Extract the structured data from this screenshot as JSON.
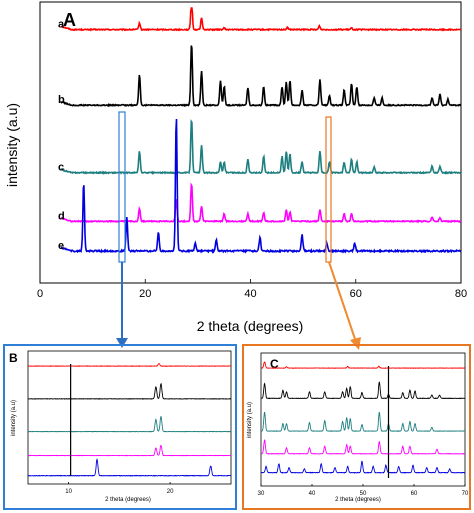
{
  "chart_data": [
    {
      "panel": "A",
      "type": "line",
      "xlabel": "2 theta (degrees)",
      "ylabel": "intensity (a.u)",
      "xlim": [
        0,
        80
      ],
      "xticks": [
        "0",
        "20",
        "40",
        "60",
        "80"
      ],
      "series": [
        {
          "name": "a",
          "color": "#ff0000",
          "baseline": 0.92,
          "scale": 0.11,
          "noise": 0.004,
          "peaks": [
            [
              18.9,
              0.22
            ],
            [
              28.8,
              1.0
            ],
            [
              30.7,
              0.38
            ],
            [
              35.0,
              0.05
            ],
            [
              47.0,
              0.07
            ],
            [
              53.1,
              0.12
            ],
            [
              59.2,
              0.05
            ]
          ],
          "x_start": 4,
          "x_end": 80
        },
        {
          "name": "b",
          "color": "#000000",
          "baseline": 0.64,
          "scale": 0.23,
          "noise": 0.004,
          "peaks": [
            [
              18.9,
              0.5
            ],
            [
              28.8,
              1.0
            ],
            [
              30.7,
              0.55
            ],
            [
              34.3,
              0.4
            ],
            [
              35.0,
              0.3
            ],
            [
              39.5,
              0.28
            ],
            [
              42.5,
              0.3
            ],
            [
              46.0,
              0.3
            ],
            [
              46.8,
              0.38
            ],
            [
              47.5,
              0.4
            ],
            [
              49.8,
              0.24
            ],
            [
              53.2,
              0.42
            ],
            [
              55.0,
              0.15
            ],
            [
              57.8,
              0.25
            ],
            [
              59.2,
              0.35
            ],
            [
              60.2,
              0.3
            ],
            [
              63.5,
              0.12
            ],
            [
              65.0,
              0.12
            ],
            [
              74.5,
              0.12
            ],
            [
              76.0,
              0.18
            ],
            [
              77.5,
              0.1
            ]
          ],
          "x_start": 4,
          "x_end": 80
        },
        {
          "name": "c",
          "color": "#1e7f80",
          "baseline": 0.39,
          "scale": 0.2,
          "noise": 0.004,
          "peaks": [
            [
              18.9,
              0.4
            ],
            [
              28.8,
              1.0
            ],
            [
              30.7,
              0.5
            ],
            [
              34.3,
              0.2
            ],
            [
              35.0,
              0.2
            ],
            [
              39.5,
              0.25
            ],
            [
              42.5,
              0.3
            ],
            [
              46.0,
              0.3
            ],
            [
              46.8,
              0.4
            ],
            [
              47.5,
              0.35
            ],
            [
              49.8,
              0.2
            ],
            [
              53.2,
              0.4
            ],
            [
              55.0,
              0.2
            ],
            [
              57.8,
              0.2
            ],
            [
              59.2,
              0.25
            ],
            [
              60.2,
              0.2
            ],
            [
              63.5,
              0.1
            ],
            [
              74.5,
              0.12
            ],
            [
              76.0,
              0.12
            ]
          ],
          "x_start": 4,
          "x_end": 80
        },
        {
          "name": "d",
          "color": "#ff00ff",
          "baseline": 0.21,
          "scale": 0.14,
          "noise": 0.004,
          "peaks": [
            [
              18.9,
              0.35
            ],
            [
              25.9,
              0.6
            ],
            [
              28.8,
              1.0
            ],
            [
              30.7,
              0.4
            ],
            [
              35.0,
              0.2
            ],
            [
              39.5,
              0.2
            ],
            [
              42.5,
              0.22
            ],
            [
              46.8,
              0.3
            ],
            [
              47.5,
              0.25
            ],
            [
              53.2,
              0.3
            ],
            [
              57.8,
              0.2
            ],
            [
              59.2,
              0.2
            ],
            [
              74.5,
              0.1
            ],
            [
              76.0,
              0.1
            ]
          ],
          "x_start": 4,
          "x_end": 80
        },
        {
          "name": "e",
          "color": "#0000e0",
          "baseline": 0.1,
          "scale": 0.5,
          "noise": 0.006,
          "peaks": [
            [
              8.3,
              0.5
            ],
            [
              16.5,
              0.25
            ],
            [
              22.5,
              0.14
            ],
            [
              25.9,
              1.0
            ],
            [
              29.5,
              0.06
            ],
            [
              33.5,
              0.08
            ],
            [
              41.8,
              0.1
            ],
            [
              49.8,
              0.12
            ],
            [
              54.5,
              0.06
            ],
            [
              59.8,
              0.06
            ]
          ],
          "x_start": 4,
          "x_end": 80
        }
      ]
    },
    {
      "panel": "B",
      "type": "line",
      "xlabel": "2 theta (degrees)",
      "ylabel": "intensity (a.u)",
      "xlim": [
        6,
        26
      ],
      "xticks": [
        "10",
        "20"
      ],
      "marker_x": 10.2,
      "series": [
        {
          "name": "a",
          "color": "#ff0000",
          "baseline": 0.92,
          "scale": 0.05,
          "noise": 0.003,
          "peaks": [
            [
              18.9,
              0.4
            ]
          ]
        },
        {
          "name": "b",
          "color": "#000000",
          "baseline": 0.66,
          "scale": 0.12,
          "noise": 0.003,
          "peaks": [
            [
              18.6,
              0.8
            ],
            [
              19.1,
              1.0
            ]
          ]
        },
        {
          "name": "c",
          "color": "#1e7f80",
          "baseline": 0.4,
          "scale": 0.12,
          "noise": 0.003,
          "peaks": [
            [
              18.6,
              0.8
            ],
            [
              19.1,
              1.0
            ]
          ]
        },
        {
          "name": "d",
          "color": "#ff00ff",
          "baseline": 0.21,
          "scale": 0.1,
          "noise": 0.003,
          "peaks": [
            [
              18.6,
              0.6
            ],
            [
              19.1,
              0.8
            ]
          ]
        },
        {
          "name": "e",
          "color": "#0000e0",
          "baseline": 0.05,
          "scale": 0.13,
          "noise": 0.004,
          "peaks": [
            [
              12.8,
              1.0
            ],
            [
              24.0,
              0.6
            ]
          ]
        }
      ]
    },
    {
      "panel": "C",
      "type": "line",
      "xlabel": "2 theta (degrees)",
      "ylabel": "intensity (a.u)",
      "xlim": [
        30,
        70
      ],
      "xticks": [
        "30",
        "40",
        "50",
        "60",
        "70"
      ],
      "marker_x": 55.0,
      "series": [
        {
          "name": "a",
          "color": "#ff0000",
          "baseline": 0.92,
          "scale": 0.05,
          "noise": 0.003,
          "peaks": [
            [
              30.7,
              1.0
            ],
            [
              35.0,
              0.2
            ],
            [
              47.0,
              0.25
            ],
            [
              53.1,
              0.3
            ]
          ]
        },
        {
          "name": "b",
          "color": "#000000",
          "baseline": 0.68,
          "scale": 0.13,
          "noise": 0.003,
          "peaks": [
            [
              30.7,
              0.9
            ],
            [
              34.3,
              0.5
            ],
            [
              35.0,
              0.4
            ],
            [
              39.5,
              0.4
            ],
            [
              42.5,
              0.4
            ],
            [
              46.0,
              0.4
            ],
            [
              46.8,
              0.6
            ],
            [
              47.5,
              0.7
            ],
            [
              49.8,
              0.35
            ],
            [
              53.2,
              1.0
            ],
            [
              55.0,
              0.25
            ],
            [
              57.8,
              0.35
            ],
            [
              59.2,
              0.5
            ],
            [
              60.2,
              0.45
            ],
            [
              63.5,
              0.2
            ],
            [
              65.0,
              0.2
            ]
          ]
        },
        {
          "name": "c",
          "color": "#1e7f80",
          "baseline": 0.42,
          "scale": 0.15,
          "noise": 0.003,
          "peaks": [
            [
              30.7,
              1.0
            ],
            [
              34.3,
              0.4
            ],
            [
              35.0,
              0.4
            ],
            [
              39.5,
              0.45
            ],
            [
              42.5,
              0.55
            ],
            [
              46.0,
              0.5
            ],
            [
              46.8,
              0.7
            ],
            [
              47.5,
              0.65
            ],
            [
              49.8,
              0.35
            ],
            [
              53.2,
              1.0
            ],
            [
              55.0,
              0.4
            ],
            [
              57.8,
              0.4
            ],
            [
              59.2,
              0.5
            ],
            [
              60.2,
              0.4
            ],
            [
              63.5,
              0.2
            ]
          ]
        },
        {
          "name": "d",
          "color": "#ff00ff",
          "baseline": 0.24,
          "scale": 0.12,
          "noise": 0.003,
          "peaks": [
            [
              30.7,
              0.9
            ],
            [
              35.0,
              0.4
            ],
            [
              39.5,
              0.4
            ],
            [
              42.5,
              0.5
            ],
            [
              46.8,
              0.6
            ],
            [
              47.5,
              0.5
            ],
            [
              53.2,
              0.8
            ],
            [
              57.8,
              0.5
            ],
            [
              59.2,
              0.5
            ],
            [
              64.5,
              0.3
            ]
          ]
        },
        {
          "name": "e",
          "color": "#0000e0",
          "baseline": 0.09,
          "scale": 0.1,
          "noise": 0.004,
          "peaks": [
            [
              31.0,
              0.5
            ],
            [
              33.5,
              0.7
            ],
            [
              35.5,
              0.4
            ],
            [
              38.5,
              0.3
            ],
            [
              41.8,
              0.7
            ],
            [
              44.5,
              0.4
            ],
            [
              47.0,
              0.5
            ],
            [
              49.8,
              0.9
            ],
            [
              52.0,
              0.5
            ],
            [
              54.5,
              0.6
            ],
            [
              57.0,
              0.5
            ],
            [
              59.8,
              0.6
            ],
            [
              62.5,
              0.4
            ],
            [
              64.5,
              0.4
            ],
            [
              67.0,
              0.3
            ]
          ]
        }
      ]
    }
  ],
  "labels": {
    "panel_a": "A",
    "panel_b": "B",
    "panel_c": "C"
  },
  "colors": {
    "box_b": "#2f7fd6",
    "box_c": "#e87722",
    "arrow_b": "#2f6fc0",
    "arrow_c": "#f08a30"
  }
}
